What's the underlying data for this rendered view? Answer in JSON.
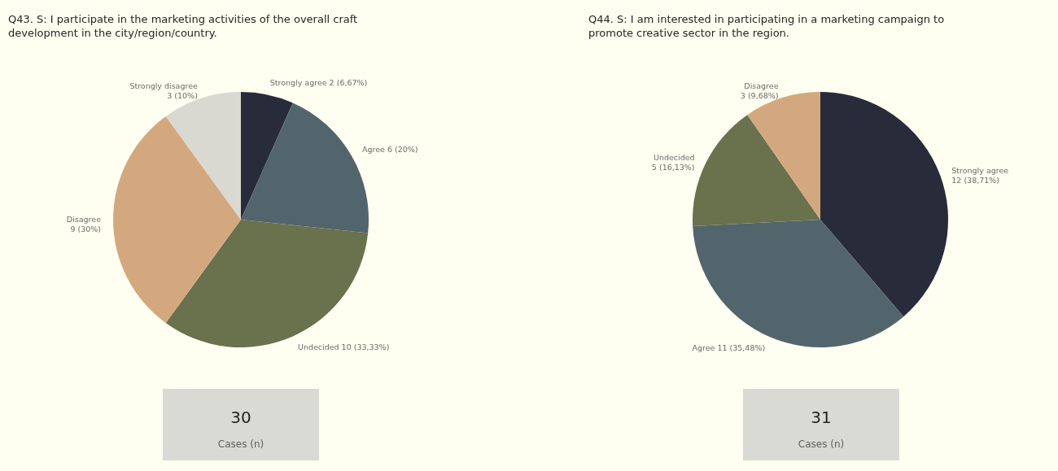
{
  "chart_data": [
    {
      "type": "pie",
      "title": "Q43. S: I participate in the marketing activities of the overall craft development in the city/region/country.",
      "categories": [
        "Strongly agree",
        "Agree",
        "Undecided",
        "Disagree",
        "Strongly disagree"
      ],
      "values": [
        2,
        6,
        10,
        9,
        3
      ],
      "colors": [
        "#282b39",
        "#52656d",
        "#69714d",
        "#d4a87e",
        "#d9d9d2"
      ],
      "value_labels": [
        "2 (6,67%)",
        "6 (20%)",
        "10 (33,33%)",
        "9 (30%)",
        "3 (10%)"
      ]
    },
    {
      "type": "other",
      "annotations": [
        "30",
        "Cases (n)"
      ]
    },
    {
      "type": "pie",
      "title": "Q44. S: I am interested in participating in a marketing campaign to promote creative sector in the region.",
      "categories": [
        "Strongly agree",
        "Agree",
        "Undecided",
        "Disagree"
      ],
      "values": [
        12,
        11,
        5,
        3
      ],
      "colors": [
        "#282b39",
        "#52656d",
        "#69714d",
        "#d4a87e"
      ],
      "value_labels": [
        "12 (38,71%)",
        "11 (35,48%)",
        "5 (16,13%)",
        "3 (9,68%)"
      ]
    },
    {
      "type": "other",
      "annotations": [
        "31",
        "Cases (n)"
      ]
    }
  ]
}
